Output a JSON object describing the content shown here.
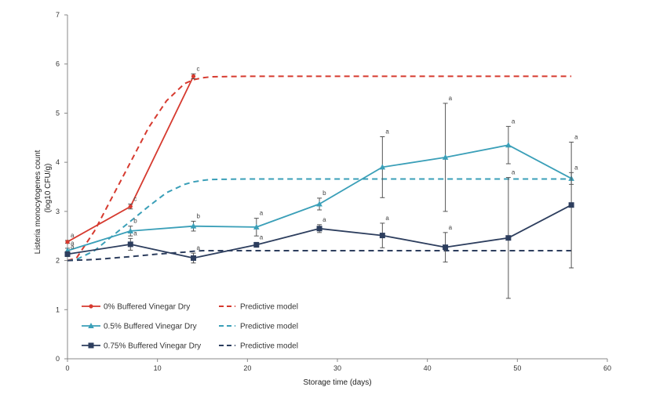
{
  "chart_data": {
    "type": "line",
    "title": "",
    "xlabel": "Storage time (days)",
    "ylabel_line1": "Listeria monocytogenes count",
    "ylabel_line2": "(log10 CFU/g)",
    "xlim": [
      0,
      60
    ],
    "ylim": [
      0,
      7
    ],
    "xticks": [
      0,
      10,
      20,
      30,
      40,
      50,
      60
    ],
    "yticks": [
      0,
      1,
      2,
      3,
      4,
      5,
      6,
      7
    ],
    "grid": false,
    "series": [
      {
        "name": "0% Buffered Vinegar Dry",
        "color": "#d63a2f",
        "marker": "circle",
        "style": "solid",
        "x": [
          0,
          7,
          14
        ],
        "y": [
          2.38,
          3.1,
          5.75
        ],
        "err": [
          0.03,
          0.05,
          0.05
        ],
        "labels": [
          "a",
          "c",
          "c"
        ]
      },
      {
        "name": "0.5% Buffered Vinegar Dry",
        "color": "#3a9fb8",
        "marker": "triangle",
        "style": "solid",
        "x": [
          0,
          7,
          14,
          21,
          28,
          35,
          42,
          49,
          56
        ],
        "y": [
          2.2,
          2.6,
          2.7,
          2.68,
          3.15,
          3.9,
          4.1,
          4.35,
          3.67
        ],
        "err": [
          0.05,
          0.1,
          0.1,
          0.18,
          0.12,
          0.62,
          1.1,
          0.38,
          0.12
        ],
        "labels": [
          "a",
          "b",
          "b",
          "a",
          "b",
          "a",
          "a",
          "a",
          "a"
        ]
      },
      {
        "name": "0.75% Buffered Vinegar Dry",
        "color": "#2d3e5e",
        "marker": "square",
        "style": "solid",
        "x": [
          0,
          7,
          14,
          21,
          28,
          35,
          42,
          49,
          56
        ],
        "y": [
          2.13,
          2.33,
          2.05,
          2.32,
          2.65,
          2.51,
          2.27,
          2.46,
          3.13
        ],
        "err": [
          0.05,
          0.12,
          0.1,
          0.05,
          0.08,
          0.25,
          0.3,
          1.23,
          1.28
        ],
        "labels": [
          "a",
          "a",
          "a",
          "a",
          "a",
          "a",
          "a",
          "a",
          "a"
        ]
      },
      {
        "name": "Predictive model",
        "color": "#d63a2f",
        "marker": "none",
        "style": "dashed",
        "x": [
          0,
          1,
          3,
          5,
          7,
          9,
          11,
          13,
          14,
          15,
          16,
          20,
          30,
          40,
          50,
          56
        ],
        "y": [
          2.0,
          2.05,
          2.6,
          3.3,
          4.0,
          4.7,
          5.25,
          5.6,
          5.68,
          5.72,
          5.74,
          5.75,
          5.75,
          5.75,
          5.75,
          5.75
        ]
      },
      {
        "name": "Predictive model",
        "color": "#3a9fb8",
        "marker": "none",
        "style": "dashed",
        "x": [
          0,
          1,
          3,
          5,
          7,
          9,
          11,
          13,
          14,
          15,
          16,
          20,
          30,
          40,
          50,
          56
        ],
        "y": [
          2.0,
          2.02,
          2.2,
          2.5,
          2.8,
          3.1,
          3.38,
          3.55,
          3.6,
          3.63,
          3.65,
          3.66,
          3.66,
          3.66,
          3.66,
          3.66
        ]
      },
      {
        "name": "Predictive model",
        "color": "#2d3e5e",
        "marker": "none",
        "style": "dashed",
        "x": [
          0,
          3,
          7,
          10,
          13,
          14,
          15,
          20,
          30,
          40,
          50,
          56
        ],
        "y": [
          2.0,
          2.02,
          2.08,
          2.13,
          2.17,
          2.19,
          2.2,
          2.2,
          2.2,
          2.2,
          2.2,
          2.2
        ]
      }
    ]
  }
}
